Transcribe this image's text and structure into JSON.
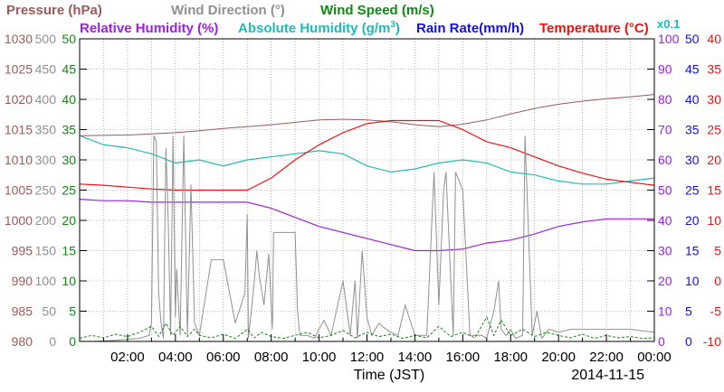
{
  "chart_data": {
    "type": "line",
    "xlabel": "Time (JST)",
    "date": "2014-11-15",
    "x_ticks": [
      "02:00",
      "04:00",
      "06:00",
      "08:00",
      "10:00",
      "12:00",
      "14:00",
      "16:00",
      "18:00",
      "20:00",
      "22:00",
      "00:00"
    ],
    "x_range_hours": [
      0,
      24
    ],
    "grid": true,
    "legend": {
      "row1": [
        {
          "key": "pressure",
          "text": "Pressure (hPa)"
        },
        {
          "key": "wind_direction",
          "text": "Wind Direction (°)"
        },
        {
          "key": "wind_speed",
          "text": "Wind Speed (m/s)"
        }
      ],
      "row2": [
        {
          "key": "relative_humidity",
          "text": "Relative Humidity (%)"
        },
        {
          "key": "absolute_humidity",
          "text": "Absolute Humidity (g/m"
        },
        {
          "key": "rain_rate",
          "text": "Rain Rate(mm/h)"
        },
        {
          "key": "temperature",
          "text": "Temperature (°C)"
        }
      ],
      "abs_sup": "3",
      "abs_close": ")",
      "multiplier": "x0.1"
    },
    "axes": {
      "pressure": {
        "ticks": [
          "980",
          "985",
          "990",
          "995",
          "1000",
          "1005",
          "1010",
          "1015",
          "1020",
          "1025",
          "1030"
        ],
        "range": [
          980,
          1030
        ],
        "color": "#9b5a5a"
      },
      "wind_direction": {
        "ticks": [
          "0",
          "50",
          "100",
          "150",
          "200",
          "250",
          "300",
          "350",
          "400",
          "450",
          "500"
        ],
        "range": [
          0,
          500
        ],
        "color": "#909090"
      },
      "wind_speed": {
        "ticks": [
          "0",
          "5",
          "10",
          "15",
          "20",
          "25",
          "30",
          "35",
          "40",
          "45",
          "50"
        ],
        "range": [
          0,
          50
        ],
        "color": "#118811"
      },
      "relative_humidity": {
        "ticks": [
          "0",
          "10",
          "20",
          "30",
          "40",
          "50",
          "60",
          "70",
          "80",
          "90",
          "100"
        ],
        "range": [
          0,
          100
        ],
        "color": "#9922dd"
      },
      "rain_rate": {
        "ticks": [
          "0",
          "5",
          "10",
          "15",
          "20",
          "25",
          "30",
          "35",
          "40",
          "45",
          "50"
        ],
        "range": [
          0,
          50
        ],
        "color": "#1111dd"
      },
      "temperature": {
        "ticks": [
          "-10",
          "-5",
          "0",
          "5",
          "10",
          "15",
          "20",
          "25",
          "30",
          "35",
          "40"
        ],
        "range": [
          -10,
          40
        ],
        "color": "#ee1111"
      }
    },
    "series": [
      {
        "name": "Pressure (hPa)",
        "key": "pressure",
        "color": "#9b5a5a",
        "x": [
          0,
          2,
          3,
          4,
          5,
          6,
          7,
          8,
          9,
          10,
          11,
          12,
          13,
          14,
          15,
          16,
          17,
          18,
          19,
          20,
          21,
          22,
          23,
          24
        ],
        "y": [
          1014.0,
          1014.1,
          1014.3,
          1014.5,
          1014.8,
          1015.2,
          1015.5,
          1015.8,
          1016.2,
          1016.6,
          1016.7,
          1016.6,
          1016.3,
          1015.8,
          1015.5,
          1015.9,
          1016.6,
          1017.6,
          1018.5,
          1019.2,
          1019.7,
          1020.1,
          1020.4,
          1020.8
        ]
      },
      {
        "name": "Relative Humidity (%)",
        "key": "relative_humidity",
        "color": "#9922dd",
        "x": [
          0,
          1,
          2,
          3,
          4,
          5,
          6,
          7,
          8,
          9,
          10,
          11,
          12,
          13,
          14,
          15,
          16,
          17,
          18,
          19,
          20,
          21,
          22,
          23,
          24
        ],
        "y": [
          47,
          46.5,
          46.5,
          46,
          46,
          46,
          46,
          46,
          44,
          41,
          38,
          36,
          34,
          32,
          30,
          30,
          30.5,
          32.5,
          33.5,
          35.5,
          38,
          39.5,
          40.5,
          40.5,
          40.5
        ]
      },
      {
        "name": "Absolute Humidity (g/m3) x0.1",
        "key": "absolute_humidity",
        "color": "#22b8b8",
        "axis": "relative_humidity",
        "x": [
          0,
          1,
          2,
          3,
          4,
          5,
          6,
          7,
          8,
          9,
          10,
          11,
          12,
          13,
          14,
          15,
          16,
          17,
          18,
          19,
          20,
          21,
          22,
          23,
          24
        ],
        "y": [
          68,
          65,
          64,
          62,
          59,
          60,
          58,
          60,
          61,
          62,
          63,
          62,
          58,
          56,
          57,
          59,
          60,
          59,
          56,
          55,
          53,
          52,
          52,
          53,
          54
        ]
      },
      {
        "name": "Temperature (°C)",
        "key": "temperature",
        "color": "#ee1111",
        "x": [
          0,
          1,
          2,
          3,
          4,
          5,
          6,
          7,
          8,
          9,
          10,
          11,
          12,
          13,
          14,
          15,
          16,
          17,
          18,
          19,
          20,
          21,
          22,
          23,
          24
        ],
        "y": [
          16,
          15.8,
          15.5,
          15.2,
          15,
          15,
          15,
          15,
          17,
          20,
          22.5,
          24.5,
          26,
          26.5,
          26.5,
          26.5,
          25,
          23,
          22,
          20.5,
          19,
          17.8,
          16.8,
          16.3,
          15.8
        ]
      },
      {
        "name": "Wind Direction (°)",
        "key": "wind_direction",
        "color": "#909090",
        "x": [
          0,
          0.6,
          1.5,
          2.5,
          2.9,
          3.0,
          3.1,
          3.2,
          3.3,
          3.4,
          3.5,
          3.6,
          3.7,
          3.8,
          3.9,
          4.0,
          4.05,
          4.2,
          4.35,
          4.5,
          4.65,
          4.8,
          5.0,
          5.5,
          6.0,
          6.5,
          6.9,
          7.0,
          7.05,
          7.3,
          7.4,
          7.5,
          7.7,
          7.9,
          8.05,
          8.1,
          9.0,
          9.1,
          9.2,
          9.5,
          9.8,
          10.2,
          10.5,
          11.0,
          11.3,
          11.5,
          11.6,
          11.8,
          12.0,
          12.2,
          12.5,
          12.8,
          13.0,
          13.3,
          13.6,
          14.0,
          14.5,
          14.8,
          15.0,
          15.2,
          15.3,
          15.6,
          15.7,
          16.0,
          16.3,
          16.8,
          17.0,
          17.3,
          17.5,
          17.6,
          17.8,
          18.0,
          18.2,
          18.5,
          18.6,
          18.9,
          19.1,
          19.3,
          19.6,
          20.0,
          20.5,
          21.0,
          22.0,
          23.0,
          24.0
        ],
        "y": [
          0,
          0,
          2,
          5,
          10,
          30,
          340,
          330,
          80,
          30,
          5,
          320,
          200,
          10,
          340,
          40,
          120,
          10,
          340,
          10,
          260,
          30,
          10,
          135,
          135,
          30,
          80,
          210,
          5,
          100,
          150,
          110,
          60,
          145,
          20,
          180,
          180,
          50,
          10,
          10,
          5,
          35,
          10,
          100,
          10,
          100,
          5,
          150,
          40,
          10,
          30,
          20,
          15,
          10,
          60,
          10,
          10,
          280,
          60,
          250,
          280,
          10,
          280,
          250,
          10,
          10,
          5,
          50,
          100,
          20,
          10,
          20,
          5,
          10,
          340,
          10,
          50,
          5,
          20,
          15,
          20,
          20,
          20,
          20,
          15
        ]
      },
      {
        "name": "Wind Speed (m/s)",
        "key": "wind_speed",
        "color": "#118811",
        "x": [
          0,
          0.5,
          1,
          1.5,
          2,
          2.5,
          3,
          3.3,
          3.6,
          3.9,
          4.2,
          4.5,
          4.8,
          5,
          5.5,
          6,
          6.5,
          7,
          7.3,
          7.6,
          8,
          8.5,
          9,
          9.5,
          10,
          10.5,
          11,
          11.5,
          12,
          12.5,
          13,
          13.5,
          14,
          14.5,
          15,
          15.5,
          16,
          16.5,
          17,
          17.3,
          17.6,
          18,
          18.5,
          19,
          19.5,
          20,
          20.5,
          21,
          21.5,
          22,
          22.5,
          23,
          23.5,
          24
        ],
        "y": [
          0.5,
          1,
          0.6,
          1.2,
          0.8,
          1.5,
          2.5,
          0.8,
          3,
          1,
          2.5,
          0.8,
          2,
          1,
          0.6,
          1.2,
          0.5,
          2,
          0.6,
          1.5,
          0.8,
          0.5,
          1,
          1.5,
          0.6,
          1,
          1.8,
          0.6,
          1.5,
          0.8,
          1.2,
          0.5,
          1,
          0.6,
          2.5,
          0.8,
          1.5,
          0.6,
          4,
          1,
          3.5,
          1,
          2,
          0.8,
          1.5,
          1,
          0.6,
          1.2,
          0.5,
          1,
          0.6,
          0.8,
          0.5,
          0.6
        ]
      },
      {
        "name": "Rain Rate(mm/h)",
        "key": "rain_rate",
        "color": "#1111dd",
        "x": [
          0,
          24
        ],
        "y": [
          0,
          0
        ]
      }
    ]
  }
}
